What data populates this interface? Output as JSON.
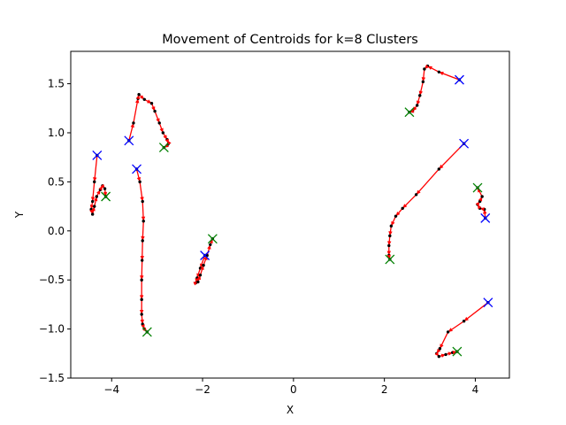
{
  "chart_data": {
    "type": "line",
    "title": "Movement of Centroids for k=8 Clusters",
    "xlabel": "X",
    "ylabel": "Y",
    "xlim": [
      -4.9,
      4.75
    ],
    "ylim": [
      -1.5,
      1.83
    ],
    "xticks": [
      -4,
      -2,
      0,
      2,
      4
    ],
    "yticks": [
      -1.5,
      -1.0,
      -0.5,
      0.0,
      0.5,
      1.0,
      1.5
    ],
    "ytick_labels": [
      "−1.5",
      "−1.0",
      "−0.5",
      "0.0",
      "0.5",
      "1.0",
      "1.5"
    ],
    "xtick_labels": [
      "−4",
      "−2",
      "0",
      "2",
      "4"
    ],
    "grid": false,
    "colors": {
      "path_line": "#ff0000",
      "path_point": "#000000",
      "path_arrow": "#ff0000",
      "start_marker": "#0000ff",
      "end_marker": "#008000"
    },
    "series": [
      {
        "points": [
          [
            -3.62,
            0.92
          ],
          [
            -3.52,
            1.1
          ],
          [
            -3.42,
            1.35
          ],
          [
            -3.4,
            1.39
          ],
          [
            -3.28,
            1.34
          ],
          [
            -3.12,
            1.3
          ],
          [
            -3.05,
            1.22
          ],
          [
            -2.95,
            1.1
          ],
          [
            -2.87,
            1.0
          ],
          [
            -2.78,
            0.93
          ],
          [
            -2.75,
            0.89
          ],
          [
            -2.78,
            0.87
          ],
          [
            -2.85,
            0.85
          ]
        ],
        "start": [
          -3.62,
          0.92
        ],
        "end": [
          -2.85,
          0.85
        ]
      },
      {
        "points": [
          [
            -3.45,
            0.63
          ],
          [
            -3.38,
            0.5
          ],
          [
            -3.32,
            0.3
          ],
          [
            -3.3,
            0.1
          ],
          [
            -3.32,
            -0.1
          ],
          [
            -3.33,
            -0.3
          ],
          [
            -3.34,
            -0.5
          ],
          [
            -3.34,
            -0.7
          ],
          [
            -3.34,
            -0.85
          ],
          [
            -3.32,
            -0.95
          ],
          [
            -3.28,
            -1.0
          ],
          [
            -3.22,
            -1.03
          ]
        ],
        "start": [
          -3.45,
          0.63
        ],
        "end": [
          -3.22,
          -1.03
        ]
      },
      {
        "points": [
          [
            -4.32,
            0.77
          ],
          [
            -4.38,
            0.5
          ],
          [
            -4.42,
            0.3
          ],
          [
            -4.45,
            0.22
          ],
          [
            -4.42,
            0.17
          ],
          [
            -4.38,
            0.25
          ],
          [
            -4.33,
            0.35
          ],
          [
            -4.25,
            0.42
          ],
          [
            -4.2,
            0.46
          ],
          [
            -4.15,
            0.43
          ],
          [
            -4.13,
            0.35
          ]
        ],
        "start": [
          -4.32,
          0.77
        ],
        "end": [
          -4.13,
          0.35
        ]
      },
      {
        "points": [
          [
            -1.95,
            -0.25
          ],
          [
            -2.05,
            -0.38
          ],
          [
            -2.12,
            -0.48
          ],
          [
            -2.15,
            -0.53
          ],
          [
            -2.1,
            -0.52
          ],
          [
            -2.05,
            -0.45
          ],
          [
            -1.98,
            -0.35
          ],
          [
            -1.9,
            -0.25
          ],
          [
            -1.83,
            -0.14
          ],
          [
            -1.78,
            -0.08
          ]
        ],
        "start": [
          -1.95,
          -0.25
        ],
        "end": [
          -1.78,
          -0.08
        ]
      },
      {
        "points": [
          [
            3.65,
            1.54
          ],
          [
            3.2,
            1.62
          ],
          [
            2.95,
            1.68
          ],
          [
            2.88,
            1.65
          ],
          [
            2.85,
            1.52
          ],
          [
            2.78,
            1.38
          ],
          [
            2.72,
            1.28
          ],
          [
            2.62,
            1.22
          ],
          [
            2.55,
            1.21
          ]
        ],
        "start": [
          3.65,
          1.54
        ],
        "end": [
          2.55,
          1.21
        ]
      },
      {
        "points": [
          [
            3.75,
            0.89
          ],
          [
            3.2,
            0.63
          ],
          [
            2.7,
            0.37
          ],
          [
            2.4,
            0.23
          ],
          [
            2.25,
            0.15
          ],
          [
            2.15,
            0.05
          ],
          [
            2.12,
            -0.05
          ],
          [
            2.1,
            -0.15
          ],
          [
            2.1,
            -0.25
          ],
          [
            2.12,
            -0.29
          ]
        ],
        "start": [
          3.75,
          0.89
        ],
        "end": [
          2.12,
          -0.29
        ]
      },
      {
        "points": [
          [
            4.22,
            0.13
          ],
          [
            4.2,
            0.22
          ],
          [
            4.1,
            0.23
          ],
          [
            4.05,
            0.27
          ],
          [
            4.1,
            0.3
          ],
          [
            4.15,
            0.35
          ],
          [
            4.05,
            0.44
          ]
        ],
        "start": [
          4.22,
          0.13
        ],
        "end": [
          4.05,
          0.44
        ]
      },
      {
        "points": [
          [
            4.28,
            -0.73
          ],
          [
            3.75,
            -0.92
          ],
          [
            3.4,
            -1.03
          ],
          [
            3.22,
            -1.2
          ],
          [
            3.15,
            -1.25
          ],
          [
            3.2,
            -1.28
          ],
          [
            3.35,
            -1.26
          ],
          [
            3.5,
            -1.24
          ],
          [
            3.6,
            -1.23
          ]
        ],
        "start": [
          4.28,
          -0.73
        ],
        "end": [
          3.6,
          -1.23
        ]
      }
    ]
  }
}
